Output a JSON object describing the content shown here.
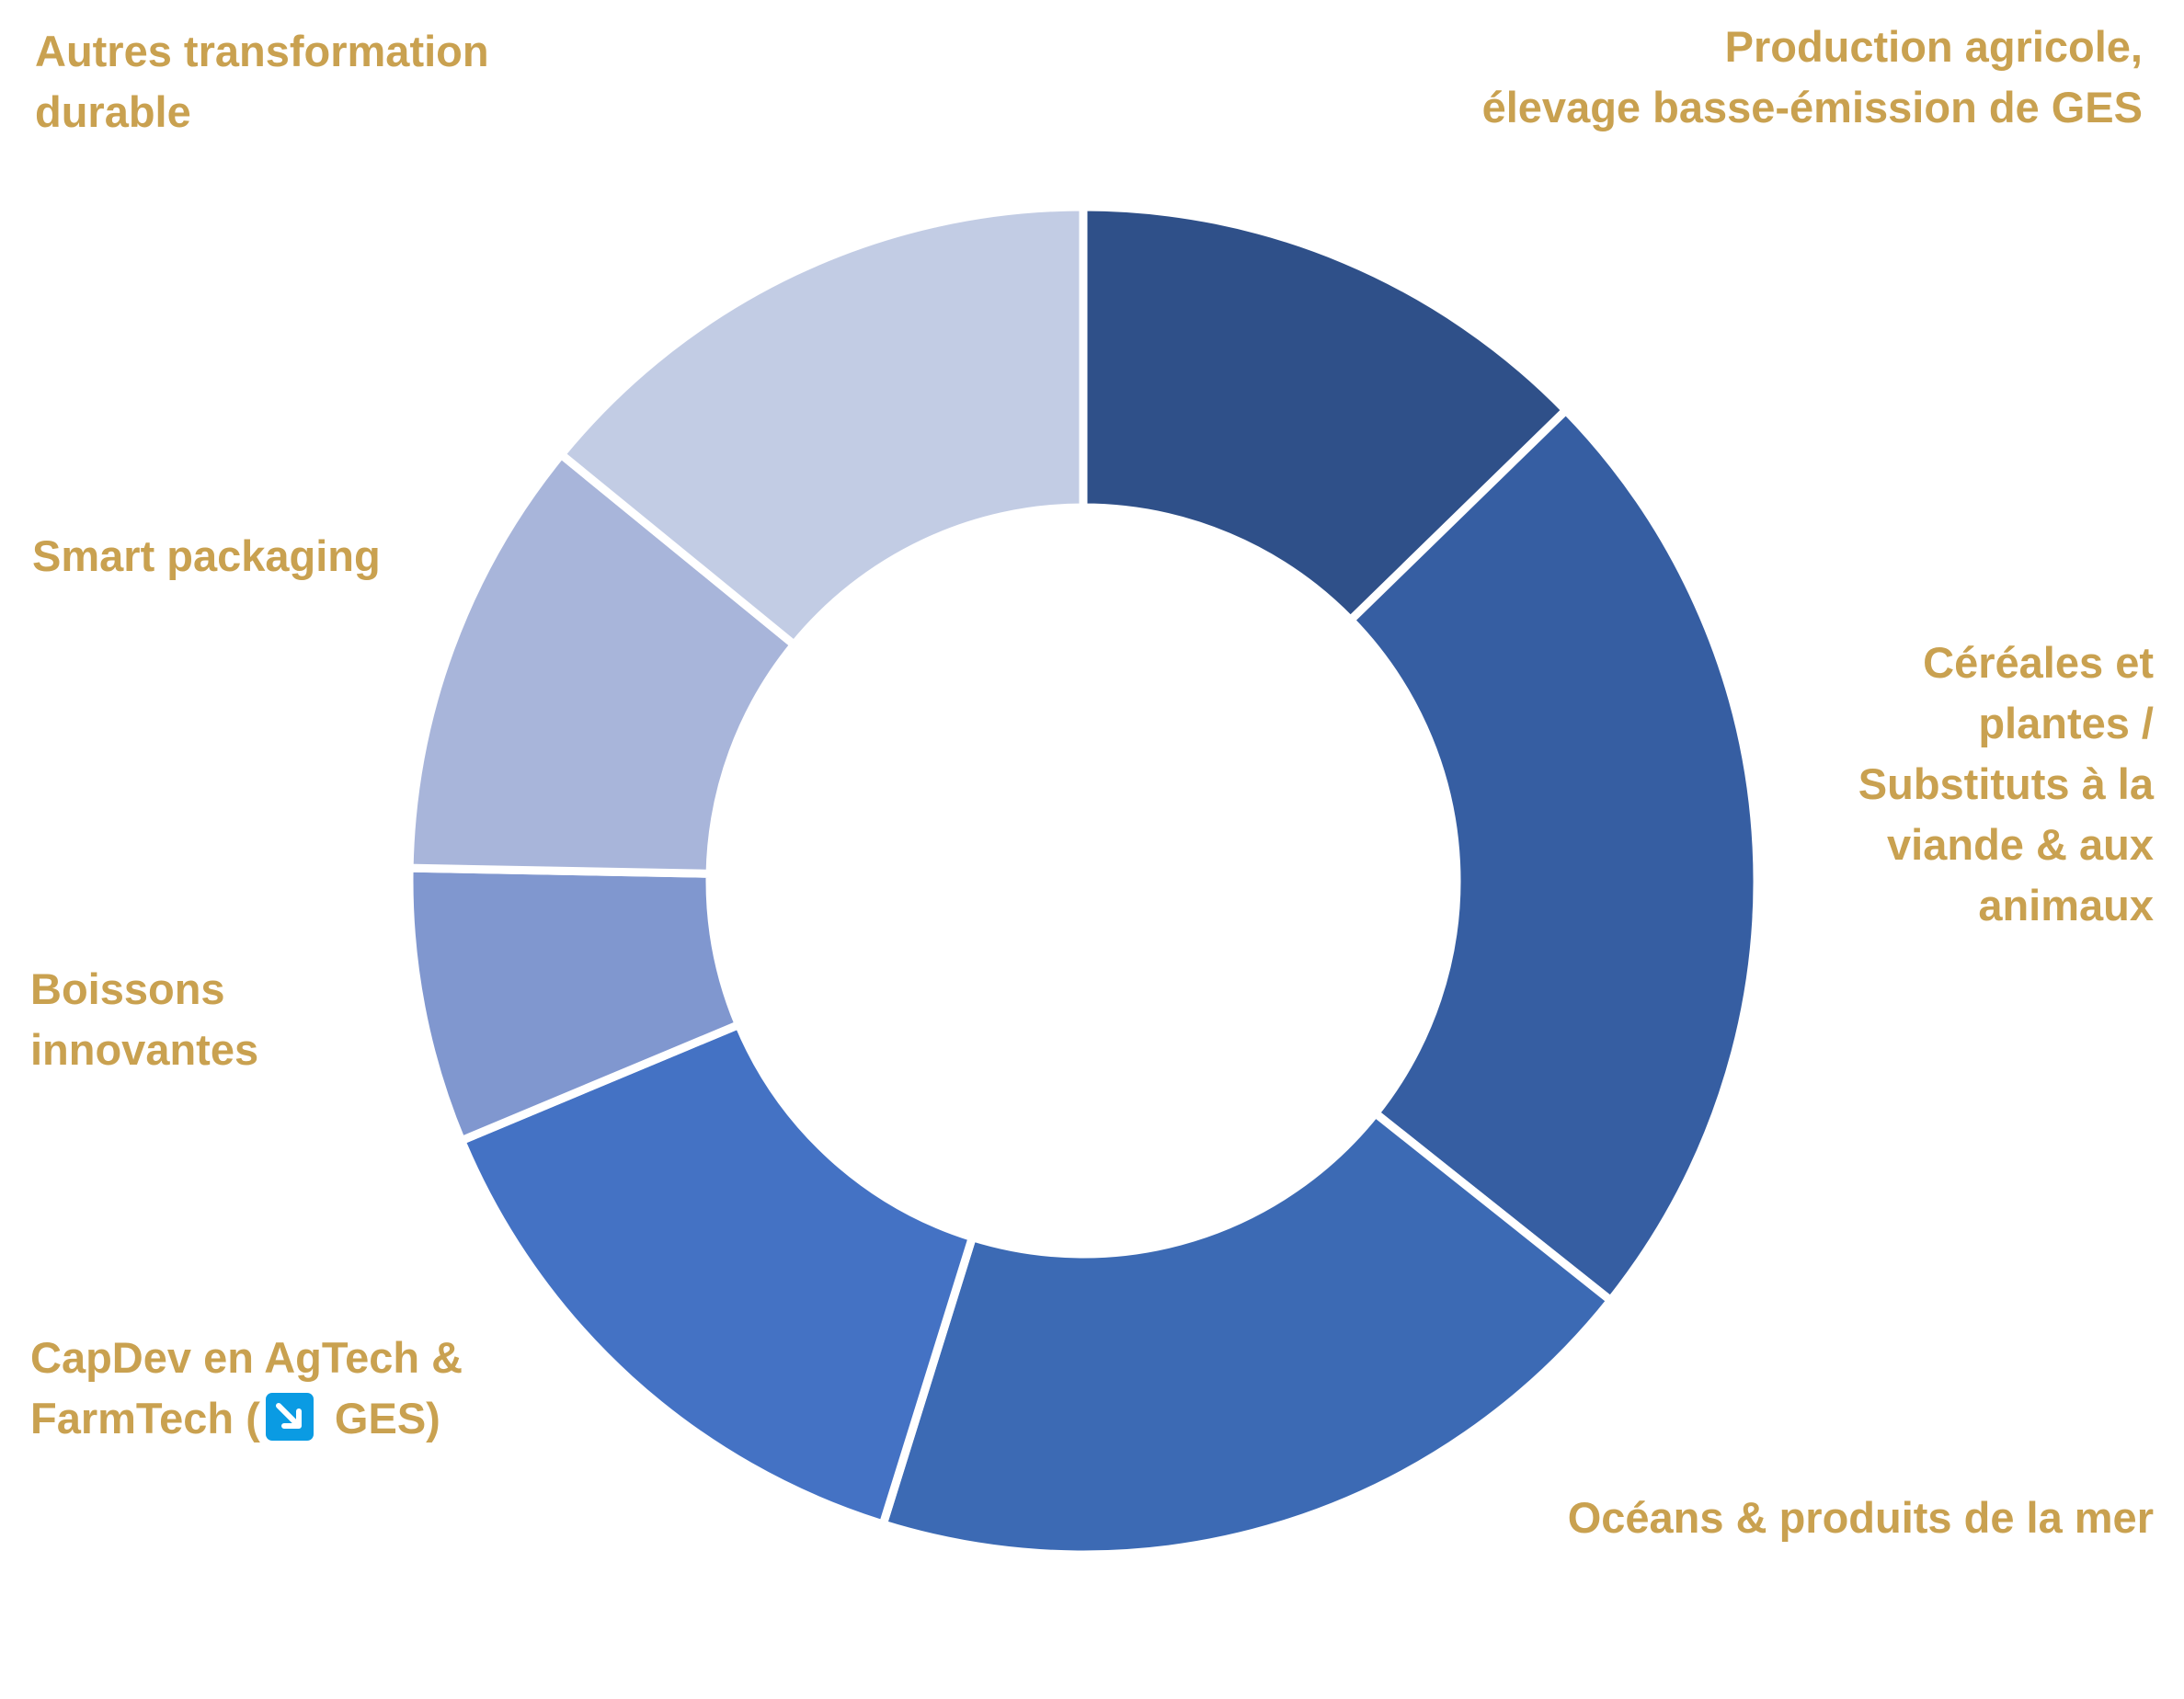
{
  "chart_data": {
    "type": "pie",
    "donut": true,
    "start_angle_deg": 0,
    "direction": "clockwise",
    "segments": [
      {
        "label": "Production agricole, élevage basse-émission de GES",
        "value": 12.7,
        "color": "#2F5089"
      },
      {
        "label": "Céréales et plantes / Substituts à la viande & aux animaux",
        "value": 23.0,
        "color": "#365EA2"
      },
      {
        "label": "Océans & produits de la mer",
        "value": 19.1,
        "color": "#3C6AB4"
      },
      {
        "label": "CapDev en AgTech & FarmTech (↘ GES)",
        "value": 13.9,
        "color": "#4472C4"
      },
      {
        "label": "Boissons innovantes",
        "value": 6.6,
        "color": "#8097CF"
      },
      {
        "label": "Smart packaging",
        "value": 10.6,
        "color": "#A8B5DA"
      },
      {
        "label": "Autres transformation durable",
        "value": 14.1,
        "color": "#C2CCE4"
      }
    ],
    "label_color": "#C9A150",
    "ges_icon_color": "#0A9BE3",
    "title": "",
    "legend": "none"
  },
  "labels": {
    "production": [
      "Production agricole,",
      "élevage basse-émission de GES"
    ],
    "cereales": [
      "Céréales et",
      "plantes  /",
      "Substituts à la",
      "viande & aux",
      "animaux"
    ],
    "oceans": [
      "Océans & produits de la mer"
    ],
    "capdev_line1": "CapDev en AgTech &",
    "capdev_line2_prefix": "FarmTech (",
    "capdev_line2_suffix": " GES)",
    "boissons": [
      "Boissons",
      "innovantes"
    ],
    "smart": [
      "Smart packaging"
    ],
    "autres": [
      "Autres transformation",
      "durable"
    ]
  },
  "icons": {
    "ges": "arrow-down-right-icon"
  }
}
